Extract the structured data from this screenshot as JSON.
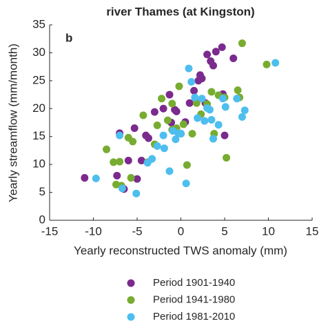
{
  "chart_data": {
    "type": "scatter",
    "title": "river Thames (at Kingston)",
    "annotation": "b",
    "x_label": "Yearly reconstructed TWS anomaly (mm)",
    "y_label": "Yearly streamflow (mm/month)",
    "xlim": [
      -15,
      15
    ],
    "ylim": [
      0,
      35
    ],
    "xticks": [
      -15,
      -10,
      -5,
      0,
      5,
      10,
      15
    ],
    "yticks": [
      0,
      5,
      10,
      15,
      20,
      25,
      30,
      35
    ],
    "series": [
      {
        "name": "Period 1901-1940",
        "color": "#7b2a8d",
        "x": [
          -11,
          -7,
          -7.3,
          -6.5,
          -6,
          -5.3,
          -5,
          -4,
          -3.7,
          -3,
          -2,
          -1.3,
          -1.1,
          -0.7,
          -0.5,
          0,
          0.5,
          1,
          1.5,
          2,
          2.2,
          2.4,
          2.8,
          3,
          3.4,
          3.7,
          4,
          4.7,
          4.8,
          6,
          -4.5,
          5
        ],
        "values": [
          7.6,
          15.6,
          8,
          5.6,
          10.7,
          16.5,
          7.4,
          15.2,
          14.7,
          19.4,
          20,
          22.5,
          17.5,
          19.8,
          19.5,
          15.5,
          17.6,
          21,
          23.2,
          25,
          26,
          25.4,
          21,
          29.7,
          28.5,
          27.7,
          30.2,
          31,
          22.6,
          29,
          10.7,
          15.2
        ]
      },
      {
        "name": "Period 1941-1980",
        "color": "#77ac30",
        "x": [
          -8.5,
          -7.7,
          -7,
          -7.4,
          -6.8,
          -6,
          -5.7,
          -5.5,
          -4.3,
          -3.8,
          -3,
          -2.7,
          -2.2,
          -1.5,
          -1,
          -0.5,
          -0.2,
          0.3,
          0.7,
          1.3,
          1.8,
          2.3,
          3,
          3.5,
          3.8,
          4.3,
          5,
          5.2,
          6.5,
          6.7,
          7,
          9.8,
          -1
        ],
        "values": [
          12.7,
          10.4,
          10.5,
          6.4,
          6.2,
          14.8,
          7.6,
          14.1,
          18.8,
          10.4,
          13.6,
          17,
          21.8,
          17.9,
          20.9,
          16.5,
          24,
          17.2,
          9.9,
          15.5,
          21,
          19,
          20.8,
          23,
          15.5,
          22.4,
          22,
          11.2,
          23.3,
          22,
          31.7,
          27.9,
          16.2
        ]
      },
      {
        "name": "Period 1981-2010",
        "color": "#4dbeee",
        "x": [
          -9.7,
          -7,
          -6.7,
          -5.1,
          -3.8,
          -3.3,
          -2.7,
          -2,
          -1.9,
          -1.3,
          -0.9,
          -0.6,
          -0.3,
          0,
          0.6,
          0.9,
          1.2,
          1.6,
          1.9,
          2.4,
          2.7,
          3,
          3.3,
          3.5,
          3.7,
          4.3,
          4.8,
          5.1,
          6.4,
          7,
          7.3,
          10.8
        ],
        "values": [
          7.5,
          15.2,
          5.7,
          4.8,
          10.3,
          11,
          13.3,
          15.2,
          12.9,
          8.8,
          16,
          14.5,
          15.6,
          15.5,
          6.6,
          27.2,
          24.8,
          22,
          18.3,
          21.8,
          17.8,
          20.1,
          19.8,
          18,
          14.6,
          17.1,
          21.8,
          20.3,
          21.8,
          18.5,
          19.7,
          28.2
        ]
      }
    ]
  }
}
